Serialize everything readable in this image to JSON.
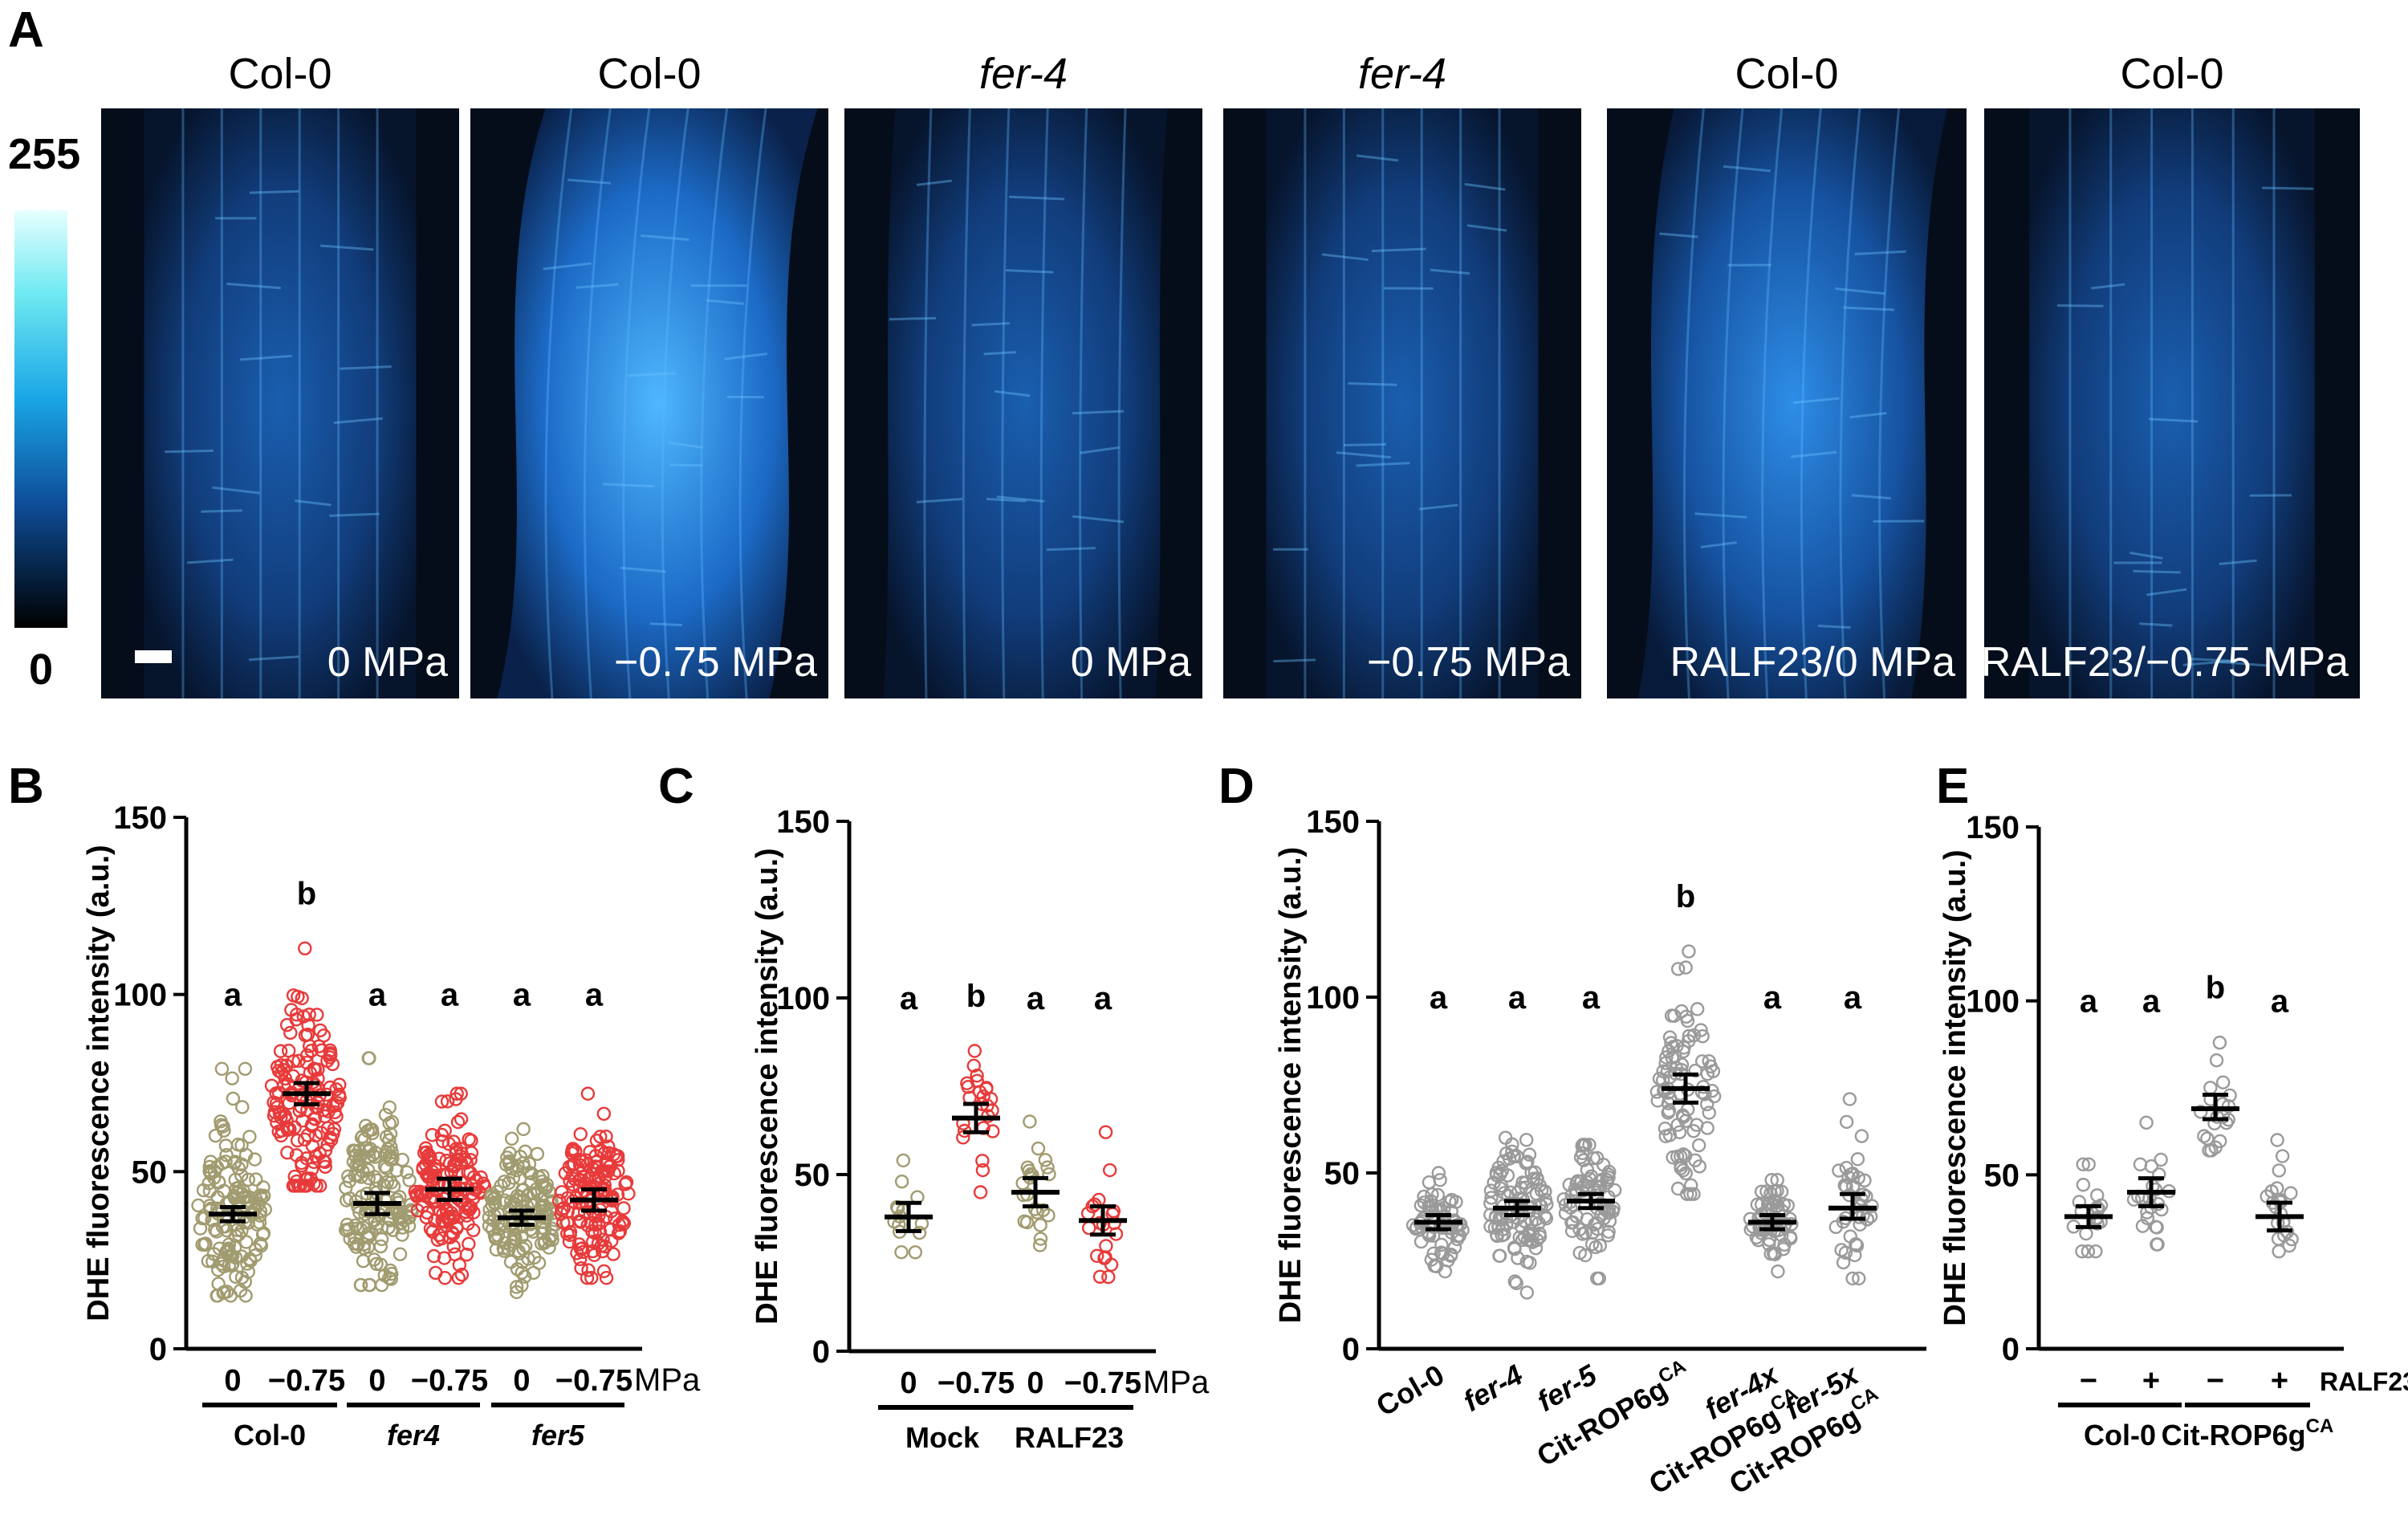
{
  "panel_letters": {
    "A": "A",
    "B": "B",
    "C": "C",
    "D": "D",
    "E": "E"
  },
  "colorbar": {
    "top_label": "255",
    "bottom_label": "0"
  },
  "images": [
    {
      "title": "Col-0",
      "italic": false,
      "label": "0 MPa"
    },
    {
      "title": "Col-0",
      "italic": false,
      "label": "−0.75 MPa"
    },
    {
      "title": "fer-4",
      "italic": true,
      "label": "0 MPa"
    },
    {
      "title": "fer-4",
      "italic": true,
      "label": "−0.75 MPa"
    },
    {
      "title": "Col-0",
      "italic": false,
      "label": "RALF23/0 MPa"
    },
    {
      "title": "Col-0",
      "italic": false,
      "label": "RALF23/−0.75 MPa"
    }
  ],
  "colors": {
    "tan": "#a19b70",
    "red": "#e83a3a",
    "gray": "#9a9a9a",
    "image_bg": "#050d1a",
    "image_fluor": "#2a8ae0"
  },
  "chart_data": [
    {
      "type": "scatter",
      "panel": "B",
      "ylabel": "DHE fluorescence intensity (a.u.)",
      "ylim": [
        0,
        150
      ],
      "yticks": [
        0,
        50,
        100,
        150
      ],
      "categories": [
        "0",
        "−0.75",
        "0",
        "−0.75",
        "0",
        "−0.75"
      ],
      "unit_label": "MPa",
      "groups": [
        {
          "label": "Col-0",
          "span": [
            0,
            1
          ],
          "italic": false
        },
        {
          "label": "fer4",
          "span": [
            2,
            3
          ],
          "italic": true
        },
        {
          "label": "fer5",
          "span": [
            4,
            5
          ],
          "italic": true
        }
      ],
      "series": [
        {
          "mean": 38,
          "ci": [
            36,
            40
          ],
          "min": 15,
          "max": 79,
          "n": 150,
          "color": "tan",
          "letter": "a"
        },
        {
          "mean": 72,
          "ci": [
            69,
            75
          ],
          "min": 46,
          "max": 113,
          "n": 150,
          "color": "red",
          "letter": "b"
        },
        {
          "mean": 41,
          "ci": [
            38,
            44
          ],
          "min": 18,
          "max": 82,
          "n": 150,
          "color": "tan",
          "letter": "a"
        },
        {
          "mean": 45,
          "ci": [
            42,
            48
          ],
          "min": 20,
          "max": 72,
          "n": 150,
          "color": "red",
          "letter": "a"
        },
        {
          "mean": 37,
          "ci": [
            35,
            39
          ],
          "min": 16,
          "max": 62,
          "n": 150,
          "color": "tan",
          "letter": "a"
        },
        {
          "mean": 42,
          "ci": [
            39,
            45
          ],
          "min": 20,
          "max": 72,
          "n": 150,
          "color": "red",
          "letter": "a"
        }
      ]
    },
    {
      "type": "scatter",
      "panel": "C",
      "ylabel": "DHE fluorescence intensity (a.u.)",
      "ylim": [
        0,
        150
      ],
      "yticks": [
        0,
        50,
        100,
        150
      ],
      "categories": [
        "0",
        "−0.75",
        "0",
        "−0.75"
      ],
      "unit_label": "MPa",
      "groups": [
        {
          "label": "Mock",
          "span": [
            0,
            1
          ],
          "italic": false
        },
        {
          "label": "RALF23",
          "span": [
            2,
            3
          ],
          "italic": false
        }
      ],
      "series": [
        {
          "mean": 38,
          "ci": [
            34,
            42
          ],
          "min": 28,
          "max": 54,
          "n": 14,
          "color": "tan",
          "letter": "a"
        },
        {
          "mean": 66,
          "ci": [
            62,
            70
          ],
          "min": 45,
          "max": 85,
          "n": 24,
          "color": "red",
          "letter": "b"
        },
        {
          "mean": 45,
          "ci": [
            41,
            49
          ],
          "min": 30,
          "max": 65,
          "n": 22,
          "color": "tan",
          "letter": "a"
        },
        {
          "mean": 37,
          "ci": [
            33,
            41
          ],
          "min": 21,
          "max": 62,
          "n": 20,
          "color": "red",
          "letter": "a"
        }
      ]
    },
    {
      "type": "scatter",
      "panel": "D",
      "ylabel": "DHE fluorescence intensity (a.u.)",
      "ylim": [
        0,
        150
      ],
      "yticks": [
        0,
        50,
        100,
        150
      ],
      "categories": [
        "Col-0",
        "fer-4",
        "fer-5",
        "Cit-ROP6g",
        "fer-4x",
        "fer-5x"
      ],
      "category_suffix": [
        [
          "",
          ""
        ],
        [
          "",
          ""
        ],
        [
          "",
          ""
        ],
        [
          "",
          "CA"
        ],
        [
          "Cit-ROP6g",
          "CA"
        ],
        [
          "Cit-ROP6g",
          "CA"
        ]
      ],
      "category_italic": [
        false,
        true,
        true,
        false,
        true,
        true
      ],
      "series": [
        {
          "mean": 36,
          "ci": [
            34,
            38
          ],
          "min": 22,
          "max": 50,
          "n": 70,
          "color": "gray",
          "letter": "a"
        },
        {
          "mean": 40,
          "ci": [
            38,
            42
          ],
          "min": 16,
          "max": 60,
          "n": 110,
          "color": "gray",
          "letter": "a"
        },
        {
          "mean": 42,
          "ci": [
            40,
            44
          ],
          "min": 20,
          "max": 58,
          "n": 80,
          "color": "gray",
          "letter": "a"
        },
        {
          "mean": 74,
          "ci": [
            70,
            78
          ],
          "min": 44,
          "max": 113,
          "n": 90,
          "color": "gray",
          "letter": "b"
        },
        {
          "mean": 36,
          "ci": [
            34,
            38
          ],
          "min": 22,
          "max": 48,
          "n": 60,
          "color": "gray",
          "letter": "a"
        },
        {
          "mean": 40,
          "ci": [
            37,
            44
          ],
          "min": 20,
          "max": 71,
          "n": 40,
          "color": "gray",
          "letter": "a"
        }
      ]
    },
    {
      "type": "scatter",
      "panel": "E",
      "ylabel": "DHE fluorescence intensity (a.u.)",
      "ylim": [
        0,
        150
      ],
      "yticks": [
        0,
        50,
        100,
        150
      ],
      "categories": [
        "−",
        "+",
        "−",
        "+"
      ],
      "unit_label": "RALF23",
      "groups": [
        {
          "label": "Col-0",
          "span": [
            0,
            1
          ],
          "italic": false,
          "sup": ""
        },
        {
          "label": "Cit-ROP6g",
          "span": [
            2,
            3
          ],
          "italic": false,
          "sup": "CA"
        }
      ],
      "series": [
        {
          "mean": 38,
          "ci": [
            35,
            41
          ],
          "min": 28,
          "max": 53,
          "n": 18,
          "color": "gray",
          "letter": "a"
        },
        {
          "mean": 45,
          "ci": [
            41,
            49
          ],
          "min": 30,
          "max": 65,
          "n": 22,
          "color": "gray",
          "letter": "a"
        },
        {
          "mean": 69,
          "ci": [
            66,
            73
          ],
          "min": 57,
          "max": 88,
          "n": 20,
          "color": "gray",
          "letter": "b"
        },
        {
          "mean": 38,
          "ci": [
            34,
            42
          ],
          "min": 28,
          "max": 60,
          "n": 22,
          "color": "gray",
          "letter": "a"
        }
      ]
    }
  ]
}
